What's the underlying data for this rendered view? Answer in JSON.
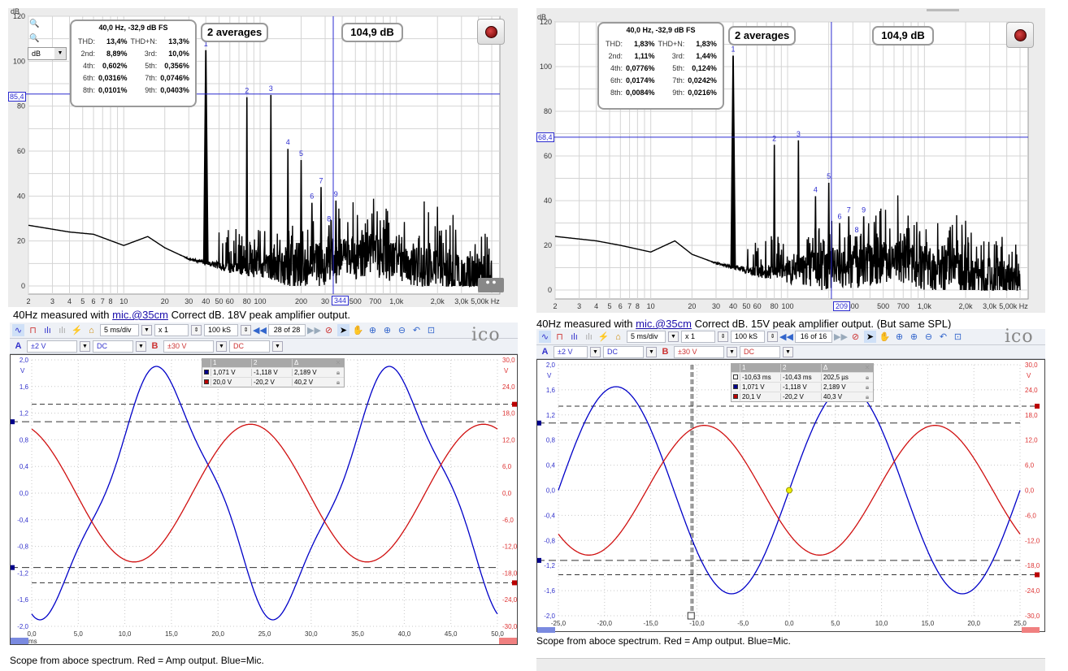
{
  "colors": {
    "blue": "#0000c8",
    "red": "#d01010",
    "cursor": "#2c2cd0",
    "spectrum": "#000000"
  },
  "left": {
    "spectrum": {
      "y_unit": "dB",
      "y_ticks": [
        "120",
        "100",
        "80",
        "60",
        "40",
        "20",
        "0"
      ],
      "x_ticks": [
        "2",
        "3",
        "4",
        "5",
        "6",
        "7",
        "8",
        "10",
        "20",
        "30",
        "40",
        "50",
        "60",
        "80",
        "100",
        "200",
        "30",
        "500",
        "700",
        "1,0k",
        "2,0k",
        "3,0k",
        "5,00k Hz"
      ],
      "unit_select": "dB",
      "info": {
        "header": "40,0 Hz, -32,9 dB FS",
        "rows": [
          [
            "THD:",
            "13,4%",
            "THD+N:",
            "13,3%"
          ],
          [
            "2nd:",
            "8,89%",
            "3rd:",
            "10,0%"
          ],
          [
            "4th:",
            "0,602%",
            "5th:",
            "0,356%"
          ],
          [
            "6th:",
            "0,0316%",
            "7th:",
            "0,0746%"
          ],
          [
            "8th:",
            "0,0101%",
            "9th:",
            "0,0403%"
          ]
        ]
      },
      "averages": "2 averages",
      "level": "104,9 dB",
      "cursor_y_label": "85,4",
      "cursor_x_label": "344"
    },
    "caption_pre": "40Hz measured with ",
    "caption_link": "mic.@35cm",
    "caption_post": "  Correct dB. 18V peak amplifier output.",
    "scope": {
      "timebase": "5 ms/div",
      "zoom": "x 1",
      "samples": "100 kS",
      "buffer": "28  of 28",
      "chA_range": "±2 V",
      "chA_coupling": "DC",
      "chB_range": "±30 V",
      "chB_coupling": "DC",
      "left_ticks": [
        "2,0",
        "1,6",
        "1,2",
        "0,8",
        "0,4",
        "0,0",
        "-0,4",
        "-0,8",
        "-1,2",
        "-1,6",
        "-2,0"
      ],
      "right_ticks": [
        "30,0",
        "24,0",
        "18,0",
        "12,0",
        "6,0",
        "0,0",
        "-6,0",
        "-12,0",
        "-18,0",
        "-24,0",
        "-30,0"
      ],
      "x_ticks": [
        "0,0",
        "5,0",
        "10,0",
        "15,0",
        "20,0",
        "25,0",
        "30,0",
        "35,0",
        "40,0",
        "45,0",
        "50,0"
      ],
      "unit_v": "V",
      "unit_ms": "ms",
      "cursor_table": {
        "headers": [
          "1",
          "2",
          "Δ"
        ],
        "rows": [
          [
            "1,071 V",
            "-1,118 V",
            "2,189 V"
          ],
          [
            "20,0 V",
            "-20,2 V",
            "40,2 V"
          ]
        ]
      },
      "zoom_a": "x1,0",
      "zoom_b": "x1,0"
    },
    "scope_caption": "Scope from aboce spectrum.  Red = Amp output.  Blue=Mic."
  },
  "right": {
    "spectrum": {
      "y_unit": "dB",
      "y_ticks": [
        "120",
        "100",
        "80",
        "60",
        "40",
        "20",
        "0"
      ],
      "x_ticks": [
        "2",
        "3",
        "4",
        "5",
        "6",
        "7",
        "8",
        "10",
        "20",
        "30",
        "40",
        "50",
        "60",
        "80",
        "100",
        "300",
        "500",
        "700",
        "1,0k",
        "2,0k",
        "3,0k",
        "5,00k Hz"
      ],
      "info": {
        "header": "40,0 Hz, -32,9 dB FS",
        "rows": [
          [
            "THD:",
            "1,83%",
            "THD+N:",
            "1,83%"
          ],
          [
            "2nd:",
            "1,11%",
            "3rd:",
            "1,44%"
          ],
          [
            "4th:",
            "0,0776%",
            "5th:",
            "0,124%"
          ],
          [
            "6th:",
            "0,0174%",
            "7th:",
            "0,0242%"
          ],
          [
            "8th:",
            "0,0084%",
            "9th:",
            "0,0216%"
          ]
        ]
      },
      "averages": "2 averages",
      "level": "104,9 dB",
      "cursor_y_label": "68,4",
      "cursor_x_label": "209"
    },
    "caption_pre": "40Hz measured with ",
    "caption_link": "mic.@35cm",
    "caption_post": " Correct dB. 15V peak amplifier output. (But same SPL)",
    "scope": {
      "timebase": "5 ms/div",
      "zoom": "x 1",
      "samples": "100 kS",
      "buffer": "16  of 16",
      "chA_range": "±2 V",
      "chA_coupling": "DC",
      "chB_range": "±30 V",
      "chB_coupling": "DC",
      "left_ticks": [
        "2,0",
        "1,6",
        "1,2",
        "0,8",
        "0,4",
        "0,0",
        "-0,4",
        "-0,8",
        "-1,2",
        "-1,6",
        "-2,0"
      ],
      "right_ticks": [
        "30,0",
        "24,0",
        "18,0",
        "12,0",
        "6,0",
        "0,0",
        "-6,0",
        "-12,0",
        "-18,0",
        "-24,0",
        "-30,0"
      ],
      "x_ticks": [
        "-25,0",
        "-20,0",
        "-15,0",
        "-10,0",
        "-5,0",
        "0,0",
        "5,0",
        "10,0",
        "15,0",
        "20,0",
        "25,0"
      ],
      "unit_v": "V",
      "cursor_table": {
        "headers": [
          "1",
          "2",
          "Δ"
        ],
        "rows": [
          [
            "-10,63 ms",
            "-10,43 ms",
            "202,5 µs"
          ],
          [
            "1,071 V",
            "-1,118 V",
            "2,189 V"
          ],
          [
            "20,1 V",
            "-20,2 V",
            "40,3 V"
          ]
        ]
      },
      "zoom_a": "x1,0",
      "zoom_b": "x1,0"
    },
    "scope_caption": "Scope from aboce spectrum.  Red = Amp output.  Blue=Mic."
  },
  "chart_data": [
    {
      "type": "line",
      "panel": "left-spectrum",
      "x_scale": "log",
      "xlim": [
        2,
        5000
      ],
      "ylim": [
        0,
        120
      ],
      "ylabel": "dB",
      "grid": true,
      "harmonics": [
        {
          "label": "1",
          "f": 40,
          "db": 104.9
        },
        {
          "label": "2",
          "f": 80,
          "db": 84
        },
        {
          "label": "3",
          "f": 120,
          "db": 85
        },
        {
          "label": "4",
          "f": 160,
          "db": 61
        },
        {
          "label": "5",
          "f": 200,
          "db": 56
        },
        {
          "label": "6",
          "f": 240,
          "db": 37
        },
        {
          "label": "7",
          "f": 280,
          "db": 44
        },
        {
          "label": "8",
          "f": 320,
          "db": 27
        },
        {
          "label": "9",
          "f": 360,
          "db": 38
        }
      ],
      "noise_floor": [
        [
          2,
          27
        ],
        [
          4,
          24
        ],
        [
          6,
          23
        ],
        [
          10,
          18
        ],
        [
          15,
          22
        ],
        [
          20,
          17
        ],
        [
          30,
          12
        ],
        [
          60,
          8
        ],
        [
          100,
          8
        ],
        [
          300,
          10
        ],
        [
          700,
          14
        ],
        [
          1000,
          10
        ],
        [
          3000,
          4
        ],
        [
          5000,
          1
        ]
      ],
      "cursor": {
        "db": 85.4,
        "f": 344
      }
    },
    {
      "type": "line",
      "panel": "right-spectrum",
      "x_scale": "log",
      "xlim": [
        2,
        5000
      ],
      "ylim": [
        0,
        120
      ],
      "ylabel": "dB",
      "grid": true,
      "harmonics": [
        {
          "label": "1",
          "f": 40,
          "db": 104.9
        },
        {
          "label": "2",
          "f": 80,
          "db": 65
        },
        {
          "label": "3",
          "f": 120,
          "db": 67
        },
        {
          "label": "4",
          "f": 160,
          "db": 42
        },
        {
          "label": "5",
          "f": 200,
          "db": 48
        },
        {
          "label": "6",
          "f": 240,
          "db": 30
        },
        {
          "label": "7",
          "f": 280,
          "db": 33
        },
        {
          "label": "8",
          "f": 320,
          "db": 24
        },
        {
          "label": "9",
          "f": 360,
          "db": 33
        }
      ],
      "noise_floor": [
        [
          2,
          24
        ],
        [
          4,
          22
        ],
        [
          6,
          20
        ],
        [
          10,
          17
        ],
        [
          15,
          22
        ],
        [
          20,
          16
        ],
        [
          30,
          12
        ],
        [
          60,
          8
        ],
        [
          100,
          8
        ],
        [
          300,
          10
        ],
        [
          700,
          13
        ],
        [
          1000,
          10
        ],
        [
          3000,
          4
        ],
        [
          5000,
          1
        ]
      ],
      "cursor": {
        "db": 68.4,
        "f": 209
      }
    },
    {
      "type": "line",
      "panel": "left-scope",
      "xlim": [
        0,
        50
      ],
      "xlabel": "ms",
      "series": [
        {
          "name": "A",
          "color": "blue",
          "ylim": [
            -2,
            2
          ],
          "frequency_hz": 40,
          "amplitude_v": 1.8,
          "peak_ms": 13.8
        },
        {
          "name": "B",
          "color": "red",
          "ylim": [
            -30,
            30
          ],
          "frequency_hz": 40,
          "amplitude_v": 15.5,
          "peak_ms": 23.5
        }
      ],
      "cursors": {
        "A": [
          1.071,
          -1.118
        ],
        "B": [
          20.0,
          -20.2
        ]
      }
    },
    {
      "type": "line",
      "panel": "right-scope",
      "xlim": [
        -25,
        25
      ],
      "series": [
        {
          "name": "A",
          "color": "blue",
          "ylim": [
            -2,
            2
          ],
          "frequency_hz": 40,
          "amplitude_v": 1.65,
          "peak_ms": 6.25
        },
        {
          "name": "B",
          "color": "red",
          "ylim": [
            -30,
            30
          ],
          "frequency_hz": 40,
          "amplitude_v": 15.5,
          "peak_ms": 15.8
        }
      ],
      "cursors": {
        "time_ms": [
          -10.63,
          -10.43
        ],
        "A": [
          1.071,
          -1.118
        ],
        "B": [
          20.1,
          -20.2
        ]
      }
    }
  ]
}
